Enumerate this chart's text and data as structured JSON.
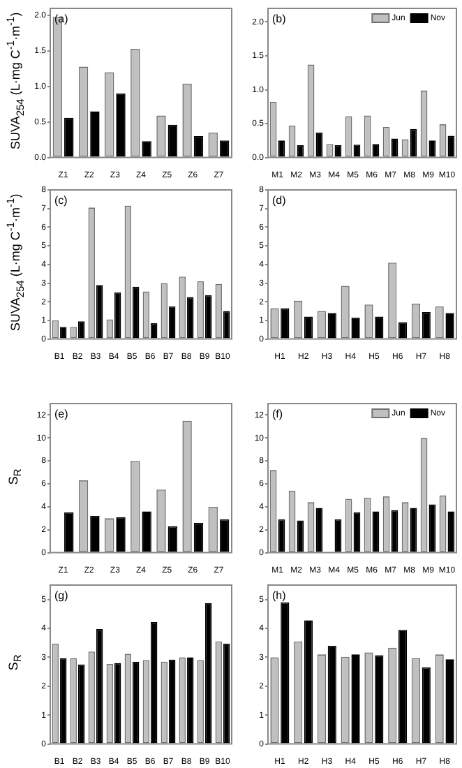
{
  "chart_data": [
    {
      "type": "bar",
      "title": "(a)",
      "ylabel": "SUVA$_{254}$ (L·mg C$^{-1}$·m$^{-1}$)",
      "categories": [
        "Z1",
        "Z2",
        "Z3",
        "Z4",
        "Z5",
        "Z6",
        "Z7"
      ],
      "ylim": [
        0,
        2.1
      ],
      "yticks": [
        {
          "value": 0,
          "label": "0.0"
        },
        {
          "value": 0.5,
          "label": "0.5"
        },
        {
          "value": 1,
          "label": "1.0"
        },
        {
          "value": 1.5,
          "label": "1.5"
        },
        {
          "value": 2,
          "label": "2.0"
        }
      ],
      "grid": false,
      "legend": false,
      "series": [
        {
          "color": "#c0c0c0",
          "values": [
            1.98,
            1.28,
            1.2,
            1.53,
            0.59,
            1.04,
            0.35
          ]
        },
        {
          "color": "#000000",
          "values": [
            0.56,
            0.65,
            0.9,
            0.23,
            0.46,
            0.3,
            0.24
          ]
        }
      ]
    },
    {
      "type": "bar",
      "title": "(b)",
      "categories": [
        "M1",
        "M2",
        "M3",
        "M4",
        "M5",
        "M6",
        "M7",
        "M8",
        "M9",
        "M10"
      ],
      "ylim": [
        0,
        2.2
      ],
      "yticks": [
        {
          "value": 0,
          "label": "0.0"
        },
        {
          "value": 0.5,
          "label": "0.5"
        },
        {
          "value": 1,
          "label": "1.0"
        },
        {
          "value": 1.5,
          "label": "1.5"
        },
        {
          "value": 2,
          "label": "2.0"
        }
      ],
      "grid": false,
      "legend": "top right",
      "series": [
        {
          "name": "Jun",
          "color": "#c0c0c0",
          "values": [
            0.82,
            0.47,
            1.37,
            0.2,
            0.61,
            0.62,
            0.45,
            0.27,
            0.99,
            0.49
          ]
        },
        {
          "name": "Nov",
          "color": "#000000",
          "values": [
            0.25,
            0.18,
            0.37,
            0.18,
            0.19,
            0.2,
            0.28,
            0.42,
            0.25,
            0.32
          ]
        }
      ]
    },
    {
      "type": "bar",
      "title": "(c)",
      "ylabel": "SUVA$_{254}$ (L·mg C$^{-1}$·m$^{-1}$)",
      "categories": [
        "B1",
        "B2",
        "B3",
        "B4",
        "B5",
        "B6",
        "B7",
        "B8",
        "B9",
        "B10"
      ],
      "ylim": [
        0,
        8
      ],
      "yticks": [
        0,
        1,
        2,
        3,
        4,
        5,
        6,
        7,
        8
      ],
      "grid": false,
      "legend": false,
      "series": [
        {
          "color": "#c0c0c0",
          "values": [
            1.0,
            0.65,
            7.05,
            1.05,
            7.15,
            2.55,
            3.0,
            3.35,
            3.1,
            2.95
          ]
        },
        {
          "color": "#000000",
          "values": [
            0.65,
            0.95,
            2.9,
            2.5,
            2.8,
            0.85,
            1.75,
            2.25,
            2.35,
            1.5
          ]
        }
      ]
    },
    {
      "type": "bar",
      "title": "(d)",
      "categories": [
        "H1",
        "H2",
        "H3",
        "H4",
        "H5",
        "H6",
        "H7",
        "H8"
      ],
      "ylim": [
        0,
        8
      ],
      "yticks": [
        0,
        1,
        2,
        3,
        4,
        5,
        6,
        7,
        8
      ],
      "grid": false,
      "legend": false,
      "series": [
        {
          "color": "#c0c0c0",
          "values": [
            1.65,
            2.05,
            1.5,
            2.85,
            1.85,
            4.1,
            1.9,
            1.75
          ]
        },
        {
          "color": "#000000",
          "values": [
            1.65,
            1.2,
            1.4,
            1.15,
            1.2,
            0.9,
            1.45,
            1.4
          ]
        }
      ]
    },
    {
      "type": "bar",
      "title": "(e)",
      "ylabel": "S$_{R}$",
      "categories": [
        "Z1",
        "Z2",
        "Z3",
        "Z4",
        "Z5",
        "Z6",
        "Z7"
      ],
      "ylim": [
        0,
        13
      ],
      "yticks": [
        0,
        2,
        4,
        6,
        8,
        10,
        12
      ],
      "grid": false,
      "legend": false,
      "series": [
        {
          "color": "#c0c0c0",
          "values": [
            null,
            6.3,
            3.0,
            8.0,
            5.5,
            11.5,
            4.0
          ]
        },
        {
          "color": "#000000",
          "values": [
            3.5,
            3.2,
            3.1,
            3.6,
            2.3,
            2.6,
            2.9
          ]
        }
      ]
    },
    {
      "type": "bar",
      "title": "(f)",
      "categories": [
        "M1",
        "M2",
        "M3",
        "M4",
        "M5",
        "M6",
        "M7",
        "M8",
        "M9",
        "M10"
      ],
      "ylim": [
        0,
        13
      ],
      "yticks": [
        0,
        2,
        4,
        6,
        8,
        10,
        12
      ],
      "grid": false,
      "legend": "top right",
      "series": [
        {
          "name": "Jun",
          "color": "#c0c0c0",
          "values": [
            7.2,
            5.4,
            4.4,
            null,
            4.7,
            4.8,
            4.9,
            4.4,
            10.0,
            5.0
          ]
        },
        {
          "name": "Nov",
          "color": "#000000",
          "values": [
            2.9,
            2.8,
            3.9,
            2.9,
            3.5,
            3.6,
            3.7,
            3.9,
            4.2,
            3.6
          ]
        }
      ]
    },
    {
      "type": "bar",
      "title": "(g)",
      "ylabel": "S$_{R}$",
      "categories": [
        "B1",
        "B2",
        "B3",
        "B4",
        "B5",
        "B6",
        "B7",
        "B8",
        "B9",
        "B10"
      ],
      "ylim": [
        0,
        5.5
      ],
      "yticks": [
        0,
        1,
        2,
        3,
        4,
        5
      ],
      "grid": false,
      "legend": false,
      "series": [
        {
          "color": "#c0c0c0",
          "values": [
            3.47,
            2.97,
            3.2,
            2.77,
            3.12,
            2.9,
            2.85,
            3.0,
            2.9,
            3.55
          ]
        },
        {
          "color": "#000000",
          "values": [
            2.97,
            2.75,
            3.98,
            2.8,
            2.85,
            4.22,
            2.92,
            3.0,
            4.87,
            3.47
          ]
        }
      ]
    },
    {
      "type": "bar",
      "title": "(h)",
      "categories": [
        "H1",
        "H2",
        "H3",
        "H4",
        "H5",
        "H6",
        "H7",
        "H8"
      ],
      "ylim": [
        0,
        5.5
      ],
      "yticks": [
        0,
        1,
        2,
        3,
        4,
        5
      ],
      "grid": false,
      "legend": false,
      "series": [
        {
          "color": "#c0c0c0",
          "values": [
            3.0,
            3.55,
            3.1,
            3.02,
            3.17,
            3.33,
            2.97,
            3.1
          ]
        },
        {
          "color": "#000000",
          "values": [
            4.9,
            4.28,
            3.4,
            3.1,
            3.07,
            3.95,
            2.65,
            2.93
          ]
        }
      ]
    }
  ]
}
